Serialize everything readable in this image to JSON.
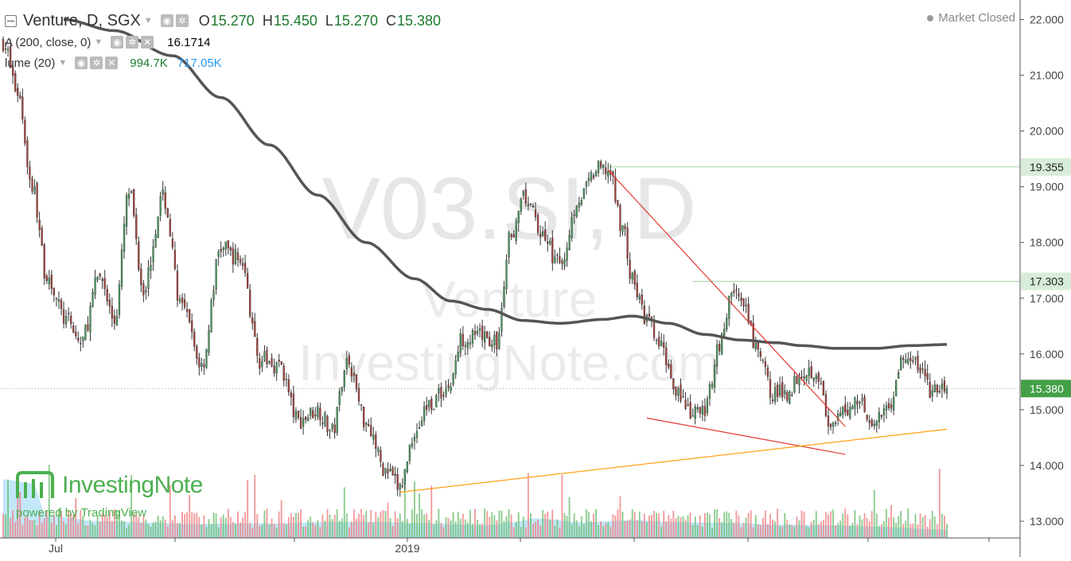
{
  "header": {
    "symbol_title": "Venture, D, SGX",
    "ohlc": [
      {
        "key": "O",
        "value": "15.270"
      },
      {
        "key": "H",
        "value": "15.450"
      },
      {
        "key": "L",
        "value": "15.270"
      },
      {
        "key": "C",
        "value": "15.380"
      }
    ],
    "ma_label": "A (200, close, 0)",
    "ma_value": "16.1714",
    "volume_label": "lume (20)",
    "volume_value": "994.7K",
    "volume_ma_value": "717.05K",
    "market_status": "Market Closed"
  },
  "watermark": {
    "big": "V03.SI, D",
    "name": "Venture",
    "site": "InvestingNote.com",
    "logo_text": "InvestingNote",
    "powered": "powered by TradingView"
  },
  "colors": {
    "up": "#4b9a5f",
    "down": "#a8433d",
    "ma": "#555555",
    "vol_up": "#66bb6a",
    "vol_down": "#ef7a7a",
    "vol_ma_area": "#8fd3f4",
    "trend_red": "#e53935",
    "trend_orange": "#ff9800",
    "hline": "#a5d6a7",
    "last_price_bg": "#43a047"
  },
  "chart_data": {
    "type": "candlestick",
    "price_axis": {
      "ticks": [
        "22.000",
        "21.000",
        "20.000",
        "19.000",
        "18.000",
        "17.000",
        "16.000",
        "15.000",
        "14.000",
        "13.000"
      ],
      "range": [
        12.7,
        22.35
      ]
    },
    "time_axis": {
      "labels": [
        "Jul",
        "2019"
      ]
    },
    "price_labels": [
      {
        "value": 19.355,
        "text": "19.355",
        "bg": "#d8edd9",
        "fg": "#222"
      },
      {
        "value": 17.303,
        "text": "17.303",
        "bg": "#d8edd9",
        "fg": "#222"
      },
      {
        "value": 15.38,
        "text": "15.380",
        "bg": "#43a047",
        "fg": "#ffffff"
      }
    ],
    "close_anchors": [
      [
        0,
        21.6
      ],
      [
        6,
        20.7
      ],
      [
        12,
        19.0
      ],
      [
        18,
        17.4
      ],
      [
        26,
        16.6
      ],
      [
        32,
        16.2
      ],
      [
        40,
        17.4
      ],
      [
        46,
        16.6
      ],
      [
        52,
        18.9
      ],
      [
        58,
        17.2
      ],
      [
        66,
        18.8
      ],
      [
        74,
        16.8
      ],
      [
        82,
        15.8
      ],
      [
        90,
        17.9
      ],
      [
        98,
        17.7
      ],
      [
        106,
        15.9
      ],
      [
        114,
        15.8
      ],
      [
        122,
        14.8
      ],
      [
        130,
        15.0
      ],
      [
        136,
        14.6
      ],
      [
        142,
        15.9
      ],
      [
        150,
        14.8
      ],
      [
        158,
        13.9
      ],
      [
        164,
        13.6
      ],
      [
        170,
        14.6
      ],
      [
        176,
        15.1
      ],
      [
        184,
        15.4
      ],
      [
        190,
        16.3
      ],
      [
        198,
        16.3
      ],
      [
        204,
        16.2
      ],
      [
        210,
        18.2
      ],
      [
        216,
        18.8
      ],
      [
        222,
        18.2
      ],
      [
        230,
        17.6
      ],
      [
        238,
        18.8
      ],
      [
        246,
        19.3
      ],
      [
        250,
        19.3
      ],
      [
        256,
        18.3
      ],
      [
        260,
        17.3
      ],
      [
        266,
        16.6
      ],
      [
        272,
        16.1
      ],
      [
        278,
        15.4
      ],
      [
        284,
        14.9
      ],
      [
        290,
        15.0
      ],
      [
        296,
        16.2
      ],
      [
        302,
        17.2
      ],
      [
        306,
        16.8
      ],
      [
        312,
        16.0
      ],
      [
        318,
        15.3
      ],
      [
        324,
        15.3
      ],
      [
        330,
        15.7
      ],
      [
        336,
        15.7
      ],
      [
        342,
        14.6
      ],
      [
        348,
        15.0
      ],
      [
        354,
        15.2
      ],
      [
        360,
        14.7
      ],
      [
        366,
        15.1
      ],
      [
        372,
        15.9
      ],
      [
        378,
        15.8
      ],
      [
        384,
        15.3
      ],
      [
        390,
        15.4
      ]
    ],
    "ma200_anchors": [
      [
        25,
        22.0
      ],
      [
        46,
        21.8
      ],
      [
        70,
        21.35
      ],
      [
        90,
        20.6
      ],
      [
        110,
        19.75
      ],
      [
        130,
        18.85
      ],
      [
        150,
        18.0
      ],
      [
        170,
        17.35
      ],
      [
        185,
        16.95
      ],
      [
        200,
        16.8
      ],
      [
        215,
        16.6
      ],
      [
        230,
        16.55
      ],
      [
        248,
        16.62
      ],
      [
        260,
        16.68
      ],
      [
        275,
        16.55
      ],
      [
        290,
        16.35
      ],
      [
        305,
        16.25
      ],
      [
        320,
        16.2
      ],
      [
        330,
        16.15
      ],
      [
        345,
        16.1
      ],
      [
        360,
        16.1
      ],
      [
        375,
        16.15
      ],
      [
        390,
        16.17
      ]
    ],
    "volume_ma_anchors": [
      [
        0,
        13.75
      ],
      [
        12,
        13.68
      ],
      [
        18,
        13.1
      ],
      [
        40,
        13.0
      ],
      [
        80,
        12.95
      ],
      [
        110,
        12.96
      ],
      [
        130,
        12.98
      ],
      [
        150,
        12.99
      ],
      [
        170,
        12.97
      ],
      [
        200,
        12.93
      ],
      [
        210,
        12.98
      ],
      [
        220,
        13.05
      ],
      [
        240,
        12.98
      ],
      [
        260,
        13.02
      ],
      [
        280,
        12.98
      ],
      [
        300,
        12.97
      ],
      [
        320,
        12.94
      ],
      [
        340,
        12.93
      ],
      [
        360,
        12.9
      ],
      [
        390,
        12.85
      ]
    ],
    "trendlines": [
      {
        "color": "trend_red",
        "from": [
          250,
          19.3
        ],
        "to": [
          348,
          14.7
        ]
      },
      {
        "color": "trend_red",
        "from": [
          266,
          14.85
        ],
        "to": [
          348,
          14.2
        ]
      },
      {
        "color": "trend_orange",
        "from": [
          164,
          13.52
        ],
        "to": [
          390,
          14.65
        ]
      }
    ],
    "horizontal_lines": [
      {
        "value": 19.355,
        "from": 250
      },
      {
        "value": 17.303,
        "from": 285
      }
    ],
    "bars": 391
  }
}
